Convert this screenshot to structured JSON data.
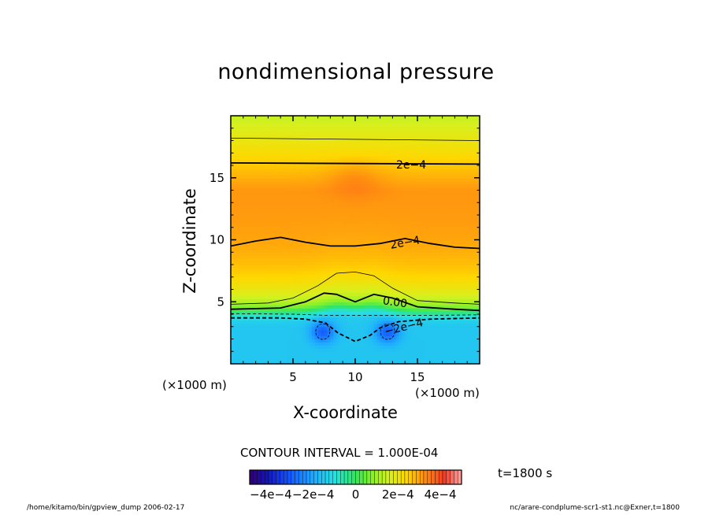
{
  "chart_data": {
    "type": "heatmap",
    "title": "nondimensional pressure",
    "xlabel": "X-coordinate",
    "ylabel": "Z-coordinate",
    "x_unit_label": "(×1000 m)",
    "y_unit_label": "(×1000 m)",
    "xlim": [
      0,
      20
    ],
    "ylim": [
      0,
      20
    ],
    "x_ticks": [
      5,
      10,
      15
    ],
    "y_ticks": [
      5,
      10,
      15
    ],
    "contour_interval_text": "CONTOUR INTERVAL = 1.000E-04",
    "time_text": "t=1800 s",
    "colorbar": {
      "range": [
        -0.0005,
        0.0005
      ],
      "tick_labels": [
        "−4e−4",
        "−2e−4",
        "0",
        "2e−4",
        "4e−4"
      ],
      "tick_values": [
        -0.0004,
        -0.0002,
        0,
        0.0002,
        0.0004
      ]
    },
    "contour_labels": [
      "2e−4",
      "2e−4",
      "0.00",
      "−2e−4"
    ],
    "field_summary": {
      "upper_layer_value": 0.0003,
      "top_value": 0.00012,
      "lower_layer_value": -0.00015,
      "interface_height": 4,
      "minima": [
        {
          "x": 7.4,
          "z": 2.6,
          "value": -0.0003
        },
        {
          "x": 12.6,
          "z": 2.6,
          "value": -0.0003
        }
      ]
    }
  },
  "footer": {
    "left": "/home/kitamo/bin/gpview_dump  2006-02-17",
    "right": "nc/arare-condplume-scr1-st1.nc@Exner,t=1800"
  },
  "colors": {
    "background": "#ffffff",
    "contour": "#000000"
  }
}
